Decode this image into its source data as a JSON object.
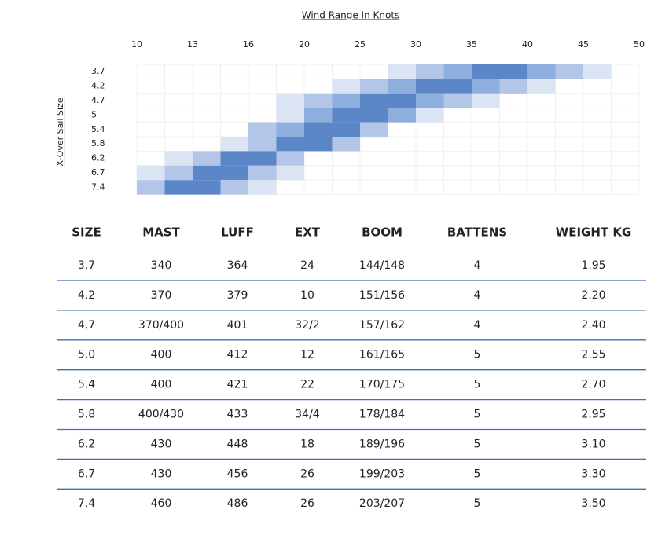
{
  "chart": {
    "type": "heatmap",
    "title": "Wind Range In Knots",
    "y_label": "X-Over Sail Size",
    "xticks": [
      "10",
      "13",
      "16",
      "20",
      "25",
      "30",
      "35",
      "40",
      "45",
      "50"
    ],
    "categories": [
      "3.7",
      "4.2",
      "4.7",
      "5",
      "5.4",
      "5.8",
      "6.2",
      "6.7",
      "7.4"
    ],
    "values": [
      [
        null,
        null,
        null,
        null,
        null,
        null,
        null,
        null,
        null,
        1,
        2,
        3,
        4,
        4,
        3,
        2,
        1,
        null
      ],
      [
        null,
        null,
        null,
        null,
        null,
        null,
        null,
        1,
        2,
        3,
        4,
        4,
        3,
        2,
        1,
        null,
        null,
        null
      ],
      [
        null,
        null,
        null,
        null,
        null,
        1,
        2,
        3,
        4,
        4,
        3,
        2,
        1,
        null,
        null,
        null,
        null,
        null
      ],
      [
        null,
        null,
        null,
        null,
        null,
        1,
        3,
        4,
        4,
        3,
        1,
        null,
        null,
        null,
        null,
        null,
        null,
        null
      ],
      [
        null,
        null,
        null,
        null,
        2,
        3,
        4,
        4,
        2,
        null,
        null,
        null,
        null,
        null,
        null,
        null,
        null,
        null
      ],
      [
        null,
        null,
        null,
        1,
        2,
        4,
        4,
        2,
        null,
        null,
        null,
        null,
        null,
        null,
        null,
        null,
        null,
        null
      ],
      [
        null,
        1,
        2,
        4,
        4,
        2,
        null,
        null,
        null,
        null,
        null,
        null,
        null,
        null,
        null,
        null,
        null,
        null
      ],
      [
        1,
        2,
        4,
        4,
        2,
        1,
        null,
        null,
        null,
        null,
        null,
        null,
        null,
        null,
        null,
        null,
        null,
        null
      ],
      [
        2,
        4,
        4,
        2,
        1,
        null,
        null,
        null,
        null,
        null,
        null,
        null,
        null,
        null,
        null,
        null,
        null,
        null
      ]
    ],
    "colors": [
      "#dbe4f3",
      "#b3c6e7",
      "#8eaedd",
      "#5b87c8"
    ]
  },
  "table": {
    "headers": [
      "SIZE",
      "MAST",
      "LUFF",
      "EXT",
      "BOOM",
      "BATTENS",
      "WEIGHT KG"
    ],
    "rows": [
      [
        "3,7",
        "340",
        "364",
        "24",
        "144/148",
        "4",
        "1.95"
      ],
      [
        "4,2",
        "370",
        "379",
        "10",
        "151/156",
        "4",
        "2.20"
      ],
      [
        "4,7",
        "370/400",
        "401",
        "32/2",
        "157/162",
        "4",
        "2.40"
      ],
      [
        "5,0",
        "400",
        "412",
        "12",
        "161/165",
        "5",
        "2.55"
      ],
      [
        "5,4",
        "400",
        "421",
        "22",
        "170/175",
        "5",
        "2.70"
      ],
      [
        "5,8",
        "400/430",
        "433",
        "34/4",
        "178/184",
        "5",
        "2.95"
      ],
      [
        "6,2",
        "430",
        "448",
        "18",
        "189/196",
        "5",
        "3.10"
      ],
      [
        "6,7",
        "430",
        "456",
        "26",
        "199/203",
        "5",
        "3.30"
      ],
      [
        "7,4",
        "460",
        "486",
        "26",
        "203/207",
        "5",
        "3.50"
      ]
    ]
  }
}
